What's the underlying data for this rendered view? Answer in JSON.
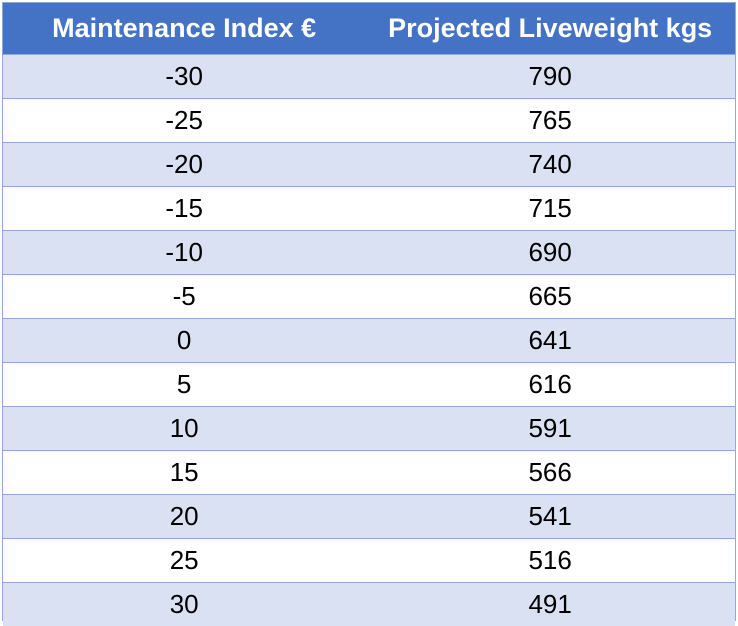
{
  "chart_data": {
    "type": "table",
    "columns": [
      "Maintenance Index €",
      "Projected Liveweight kgs"
    ],
    "rows": [
      [
        "-30",
        "790"
      ],
      [
        "-25",
        "765"
      ],
      [
        "-20",
        "740"
      ],
      [
        "-15",
        "715"
      ],
      [
        "-10",
        "690"
      ],
      [
        "-5",
        "665"
      ],
      [
        "0",
        "641"
      ],
      [
        "5",
        "616"
      ],
      [
        "10",
        "591"
      ],
      [
        "15",
        "566"
      ],
      [
        "20",
        "541"
      ],
      [
        "25",
        "516"
      ],
      [
        "30",
        "491"
      ]
    ]
  },
  "colors": {
    "header_background": "#4472c4",
    "header_text": "#ffffff",
    "band_row": "#d9e1f2",
    "plain_row": "#ffffff",
    "border": "#8eaadb"
  }
}
